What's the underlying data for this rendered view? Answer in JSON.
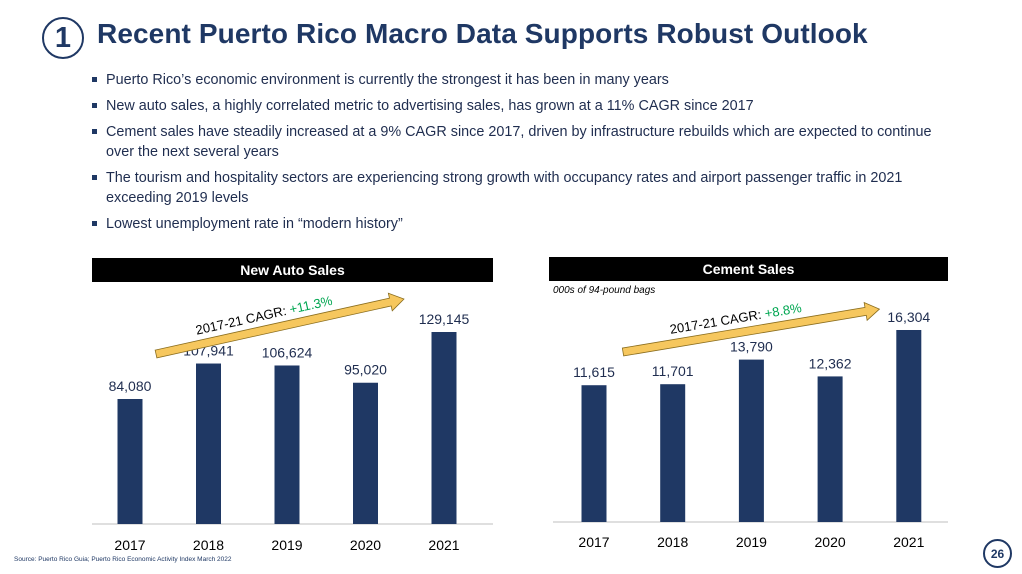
{
  "header": {
    "section_number": "1",
    "title": "Recent Puerto Rico Macro Data Supports Robust Outlook"
  },
  "bullets": [
    "Puerto Rico’s economic environment is currently the strongest it has been in many years",
    "New auto sales, a highly correlated metric to advertising sales, has grown at a 11% CAGR since 2017",
    "Cement sales have steadily increased at a 9% CAGR since 2017, driven by infrastructure rebuilds which are expected to continue over the next several years",
    "The tourism and hospitality sectors are experiencing strong growth with occupancy rates and airport passenger traffic in 2021 exceeding 2019 levels",
    "Lowest unemployment rate in “modern history”"
  ],
  "chart_data": [
    {
      "type": "bar",
      "title": "New Auto Sales",
      "subtitle": "",
      "categories": [
        "2017",
        "2018",
        "2019",
        "2020",
        "2021"
      ],
      "values": [
        84080,
        107941,
        106624,
        95020,
        129145
      ],
      "value_labels": [
        "84,080",
        "107,941",
        "106,624",
        "95,020",
        "129,145"
      ],
      "ylim": [
        0,
        150000
      ],
      "xlabel": "",
      "ylabel": "",
      "bar_color": "#1f3864",
      "annotation": {
        "label": "2017-21 CAGR: ",
        "value": "+11.3%",
        "value_color": "#00a651"
      }
    },
    {
      "type": "bar",
      "title": "Cement Sales",
      "subtitle": "000s of 94-pound bags",
      "categories": [
        "2017",
        "2018",
        "2019",
        "2020",
        "2021"
      ],
      "values": [
        11615,
        11701,
        13790,
        12362,
        16304
      ],
      "value_labels": [
        "11,615",
        "11,701",
        "13,790",
        "12,362",
        "16,304"
      ],
      "ylim": [
        0,
        18936
      ],
      "xlabel": "",
      "ylabel": "",
      "bar_color": "#1f3864",
      "annotation": {
        "label": "2017-21 CAGR: ",
        "value": "+8.8%",
        "value_color": "#00a651"
      }
    }
  ],
  "footer": {
    "source": "Source: Puerto Rico Guia; Puerto Rico Economic Activity Index March 2022",
    "page_number": "26"
  },
  "colors": {
    "title": "#1f3864",
    "bar": "#1f3864",
    "arrow": "#f6c75e",
    "cagr": "#00a651"
  }
}
